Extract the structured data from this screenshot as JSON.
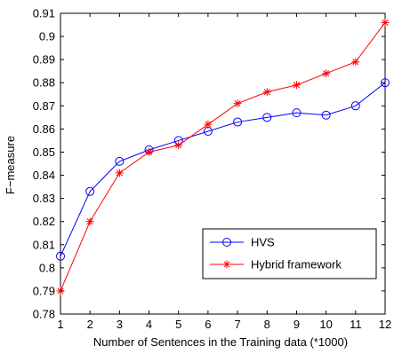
{
  "chart_data": {
    "type": "line",
    "xlabel": "Number of Sentences in the Training data (*1000)",
    "ylabel": "F−measure",
    "x": [
      1,
      2,
      3,
      4,
      5,
      6,
      7,
      8,
      9,
      10,
      11,
      12
    ],
    "x_tick_labels": [
      "1",
      "2",
      "3",
      "4",
      "5",
      "6",
      "7",
      "8",
      "9",
      "10",
      "11",
      "12"
    ],
    "xlim": [
      1,
      12
    ],
    "ylim": [
      0.78,
      0.91
    ],
    "y_ticks": [
      0.78,
      0.79,
      0.8,
      0.81,
      0.82,
      0.83,
      0.84,
      0.85,
      0.86,
      0.87,
      0.88,
      0.89,
      0.9,
      0.91
    ],
    "y_tick_labels": [
      "0.78",
      "0.79",
      "0.8",
      "0.81",
      "0.82",
      "0.83",
      "0.84",
      "0.85",
      "0.86",
      "0.87",
      "0.88",
      "0.89",
      "0.9",
      "0.91"
    ],
    "grid": false,
    "legend_position": "bottom-right",
    "series": [
      {
        "name": "HVS",
        "color": "#0000ff",
        "marker": "circle",
        "values": [
          0.805,
          0.833,
          0.846,
          0.851,
          0.855,
          0.859,
          0.863,
          0.865,
          0.867,
          0.866,
          0.87,
          0.88
        ]
      },
      {
        "name": "Hybrid framework",
        "color": "#ff0000",
        "marker": "star",
        "values": [
          0.79,
          0.82,
          0.841,
          0.85,
          0.853,
          0.862,
          0.871,
          0.876,
          0.879,
          0.884,
          0.889,
          0.906
        ]
      }
    ]
  }
}
